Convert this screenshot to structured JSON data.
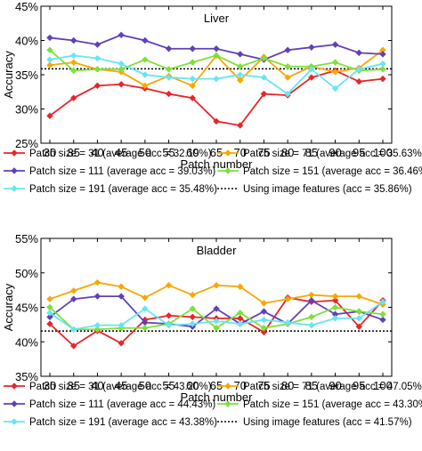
{
  "chart_data": [
    {
      "type": "line",
      "title": "Liver",
      "xlabel": "Patch number",
      "ylabel": "Accuracy",
      "x": [
        30,
        35,
        40,
        45,
        50,
        55,
        60,
        65,
        70,
        75,
        80,
        85,
        90,
        95,
        100
      ],
      "ylim": [
        25,
        45
      ],
      "yticks": [
        "25%",
        "30%",
        "35%",
        "40%",
        "45%"
      ],
      "series": [
        {
          "name": "Patch size = 31 (average acc = 32.19%)",
          "color": "#e8262b",
          "values": [
            29.0,
            31.6,
            33.4,
            33.6,
            33.0,
            32.2,
            31.6,
            28.2,
            27.6,
            32.2,
            32.0,
            34.6,
            35.6,
            34.0,
            34.4
          ]
        },
        {
          "name": "Patch size = 71 (average acc = 35.63%)",
          "color": "#f7a800",
          "values": [
            36.4,
            36.8,
            35.8,
            35.4,
            33.4,
            34.8,
            33.4,
            37.8,
            34.2,
            37.6,
            34.6,
            36.2,
            35.4,
            36.0,
            38.6
          ]
        },
        {
          "name": "Patch size = 111 (average acc = 39.03%)",
          "color": "#6140b8",
          "values": [
            40.4,
            40.0,
            39.4,
            40.8,
            40.0,
            38.8,
            38.8,
            38.8,
            38.0,
            37.2,
            38.6,
            39.0,
            39.4,
            38.2,
            38.0
          ]
        },
        {
          "name": "Patch size = 151 (average acc = 36.46%)",
          "color": "#7ee03a",
          "values": [
            38.6,
            35.6,
            35.8,
            35.8,
            37.2,
            35.8,
            36.8,
            37.8,
            36.2,
            37.4,
            36.2,
            36.2,
            36.8,
            35.6,
            35.8
          ]
        },
        {
          "name": "Patch size = 191 (average acc = 35.48%)",
          "color": "#66e5f5",
          "values": [
            37.2,
            37.8,
            37.4,
            36.6,
            35.0,
            34.6,
            34.4,
            34.4,
            35.0,
            34.6,
            32.2,
            35.8,
            33.0,
            35.8,
            36.6
          ]
        }
      ],
      "reference": {
        "name": "Using image features (acc = 35.86%)",
        "value": 35.86,
        "style": "dotted",
        "color": "#000000"
      }
    },
    {
      "type": "line",
      "title": "Bladder",
      "xlabel": "Patch number",
      "ylabel": "Accuracy",
      "x": [
        30,
        35,
        40,
        45,
        50,
        55,
        60,
        65,
        70,
        75,
        80,
        85,
        90,
        95,
        100
      ],
      "ylim": [
        35,
        55
      ],
      "yticks": [
        "35%",
        "40%",
        "45%",
        "50%",
        "55%"
      ],
      "series": [
        {
          "name": "Patch size = 31 (average acc = 43.20%)",
          "color": "#e8262b",
          "values": [
            42.6,
            39.4,
            41.6,
            39.8,
            43.2,
            43.8,
            43.6,
            43.4,
            43.4,
            41.4,
            46.4,
            45.8,
            46.0,
            42.2,
            46.0
          ]
        },
        {
          "name": "Patch size = 71 (average acc = 47.05%)",
          "color": "#f7a800",
          "values": [
            46.2,
            47.4,
            48.6,
            48.0,
            46.4,
            48.2,
            46.8,
            48.2,
            48.0,
            45.6,
            46.2,
            46.8,
            46.6,
            46.6,
            45.4
          ]
        },
        {
          "name": "Patch size = 111 (average acc = 44.43%)",
          "color": "#6140b8",
          "values": [
            43.6,
            46.2,
            46.6,
            46.6,
            42.8,
            42.6,
            42.2,
            44.8,
            42.6,
            44.4,
            42.6,
            46.0,
            44.0,
            44.4,
            43.2
          ]
        },
        {
          "name": "Patch size = 151 (average acc = 43.30%)",
          "color": "#7ee03a",
          "values": [
            45.0,
            41.8,
            41.8,
            42.0,
            42.0,
            42.6,
            44.8,
            42.0,
            44.2,
            42.0,
            42.6,
            43.6,
            45.0,
            44.4,
            44.0
          ]
        },
        {
          "name": "Patch size = 191 (average acc = 43.38%)",
          "color": "#66e5f5",
          "values": [
            44.2,
            41.8,
            42.4,
            42.4,
            44.8,
            42.4,
            42.6,
            43.0,
            42.6,
            43.2,
            42.8,
            42.4,
            43.4,
            43.4,
            45.8
          ]
        }
      ],
      "reference": {
        "name": "Using image features (acc = 41.57%)",
        "value": 41.57,
        "style": "dotted",
        "color": "#000000"
      }
    }
  ]
}
